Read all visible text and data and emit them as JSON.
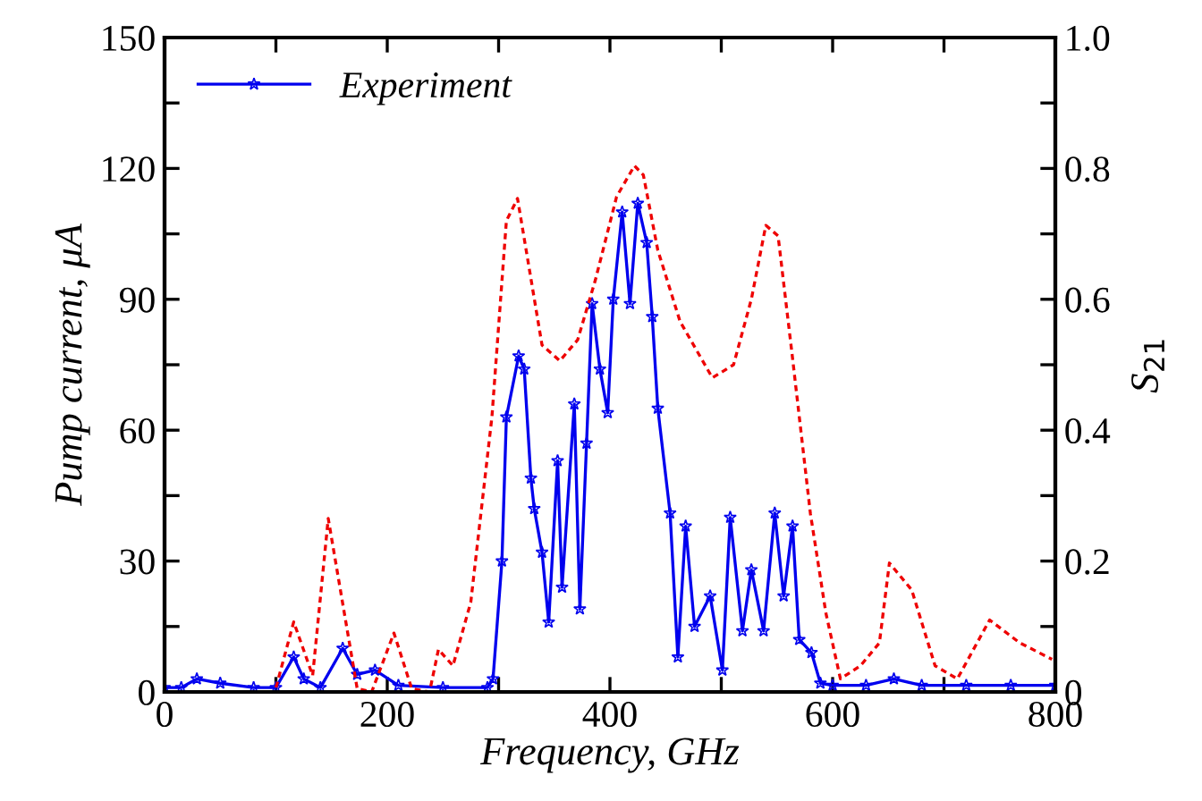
{
  "chart_data": {
    "type": "line",
    "xlabel": "Frequency, GHz",
    "ylabel": "Pump current, μA",
    "y2label": "S$_{21}$",
    "xlim": [
      0,
      800
    ],
    "xticks": [
      0,
      {
        "value": 100,
        "label": null
      },
      200,
      {
        "value": 300,
        "label": null
      },
      400,
      {
        "value": 500,
        "label": null
      },
      600,
      {
        "value": 700,
        "label": null
      },
      800
    ],
    "ylim": [
      0,
      150
    ],
    "yticks": [
      0,
      {
        "value": 15,
        "label": null
      },
      30,
      {
        "value": 45,
        "label": null
      },
      60,
      {
        "value": 75,
        "label": null
      },
      90,
      {
        "value": 105,
        "label": null
      },
      120,
      {
        "value": 135,
        "label": null
      },
      150
    ],
    "y2lim": [
      0,
      1.0
    ],
    "y2ticks": [
      {
        "value": 0,
        "label": "0"
      },
      {
        "value": 0.1,
        "label": null
      },
      0.2,
      {
        "value": 0.3,
        "label": null
      },
      0.4,
      {
        "value": 0.5,
        "label": null
      },
      0.6,
      {
        "value": 0.7,
        "label": null
      },
      0.8,
      {
        "value": 0.9,
        "label": null
      },
      {
        "value": 1.0,
        "label": "1.0"
      }
    ],
    "legend": "top left",
    "grid": false,
    "series": [
      {
        "name": "Experiment",
        "color": "#0000ee",
        "marker": "star",
        "line_style": "solid",
        "x": [
          0,
          15,
          29,
          50,
          80,
          100,
          116,
          125,
          140,
          160,
          173,
          189,
          210,
          250,
          290,
          295,
          303,
          307,
          318,
          323,
          329,
          332,
          339,
          345,
          353,
          357,
          368,
          373,
          379,
          384,
          391,
          398,
          403,
          411,
          418,
          425,
          433,
          438,
          443,
          454,
          461,
          468,
          476,
          490,
          501,
          508,
          519,
          527,
          538,
          548,
          556,
          564,
          570,
          581,
          589,
          600,
          630,
          655,
          680,
          720,
          760,
          800
        ],
        "values": [
          1,
          1,
          3,
          2,
          1,
          1,
          8,
          3,
          1,
          10,
          4,
          5,
          1.5,
          1,
          1,
          3,
          30,
          63,
          77,
          74,
          49,
          42,
          32,
          16,
          53,
          24,
          66,
          19,
          57,
          89,
          74,
          64,
          90,
          110,
          89,
          112,
          103,
          86,
          65,
          41,
          8,
          38,
          15,
          22,
          5,
          40,
          14,
          28,
          14,
          41,
          22,
          38,
          12,
          9,
          2,
          1.5,
          1.5,
          3,
          1.5,
          1.5,
          1.5,
          1.5
        ]
      },
      {
        "color": "#ee0000",
        "axis": "y2",
        "marker": "none",
        "line_style": "dashed",
        "x": [
          0,
          99,
          116,
          133,
          147,
          173,
          186,
          206,
          222,
          238,
          246,
          259,
          275,
          294,
          307,
          317,
          339,
          355,
          371,
          387,
          406,
          422,
          430,
          443,
          463,
          492,
          511,
          527,
          540,
          551,
          564,
          580,
          594,
          607,
          625,
          642,
          651,
          671,
          692,
          712,
          741,
          768,
          797
        ],
        "values": [
          0,
          0,
          0.107,
          0.025,
          0.265,
          0.005,
          0,
          0.09,
          0.005,
          0,
          0.065,
          0.04,
          0.137,
          0.42,
          0.72,
          0.754,
          0.53,
          0.506,
          0.538,
          0.63,
          0.757,
          0.804,
          0.79,
          0.675,
          0.566,
          0.48,
          0.5,
          0.6,
          0.713,
          0.697,
          0.51,
          0.273,
          0.12,
          0.02,
          0.04,
          0.075,
          0.197,
          0.156,
          0.04,
          0.02,
          0.11,
          0.075,
          0.05
        ]
      }
    ]
  }
}
